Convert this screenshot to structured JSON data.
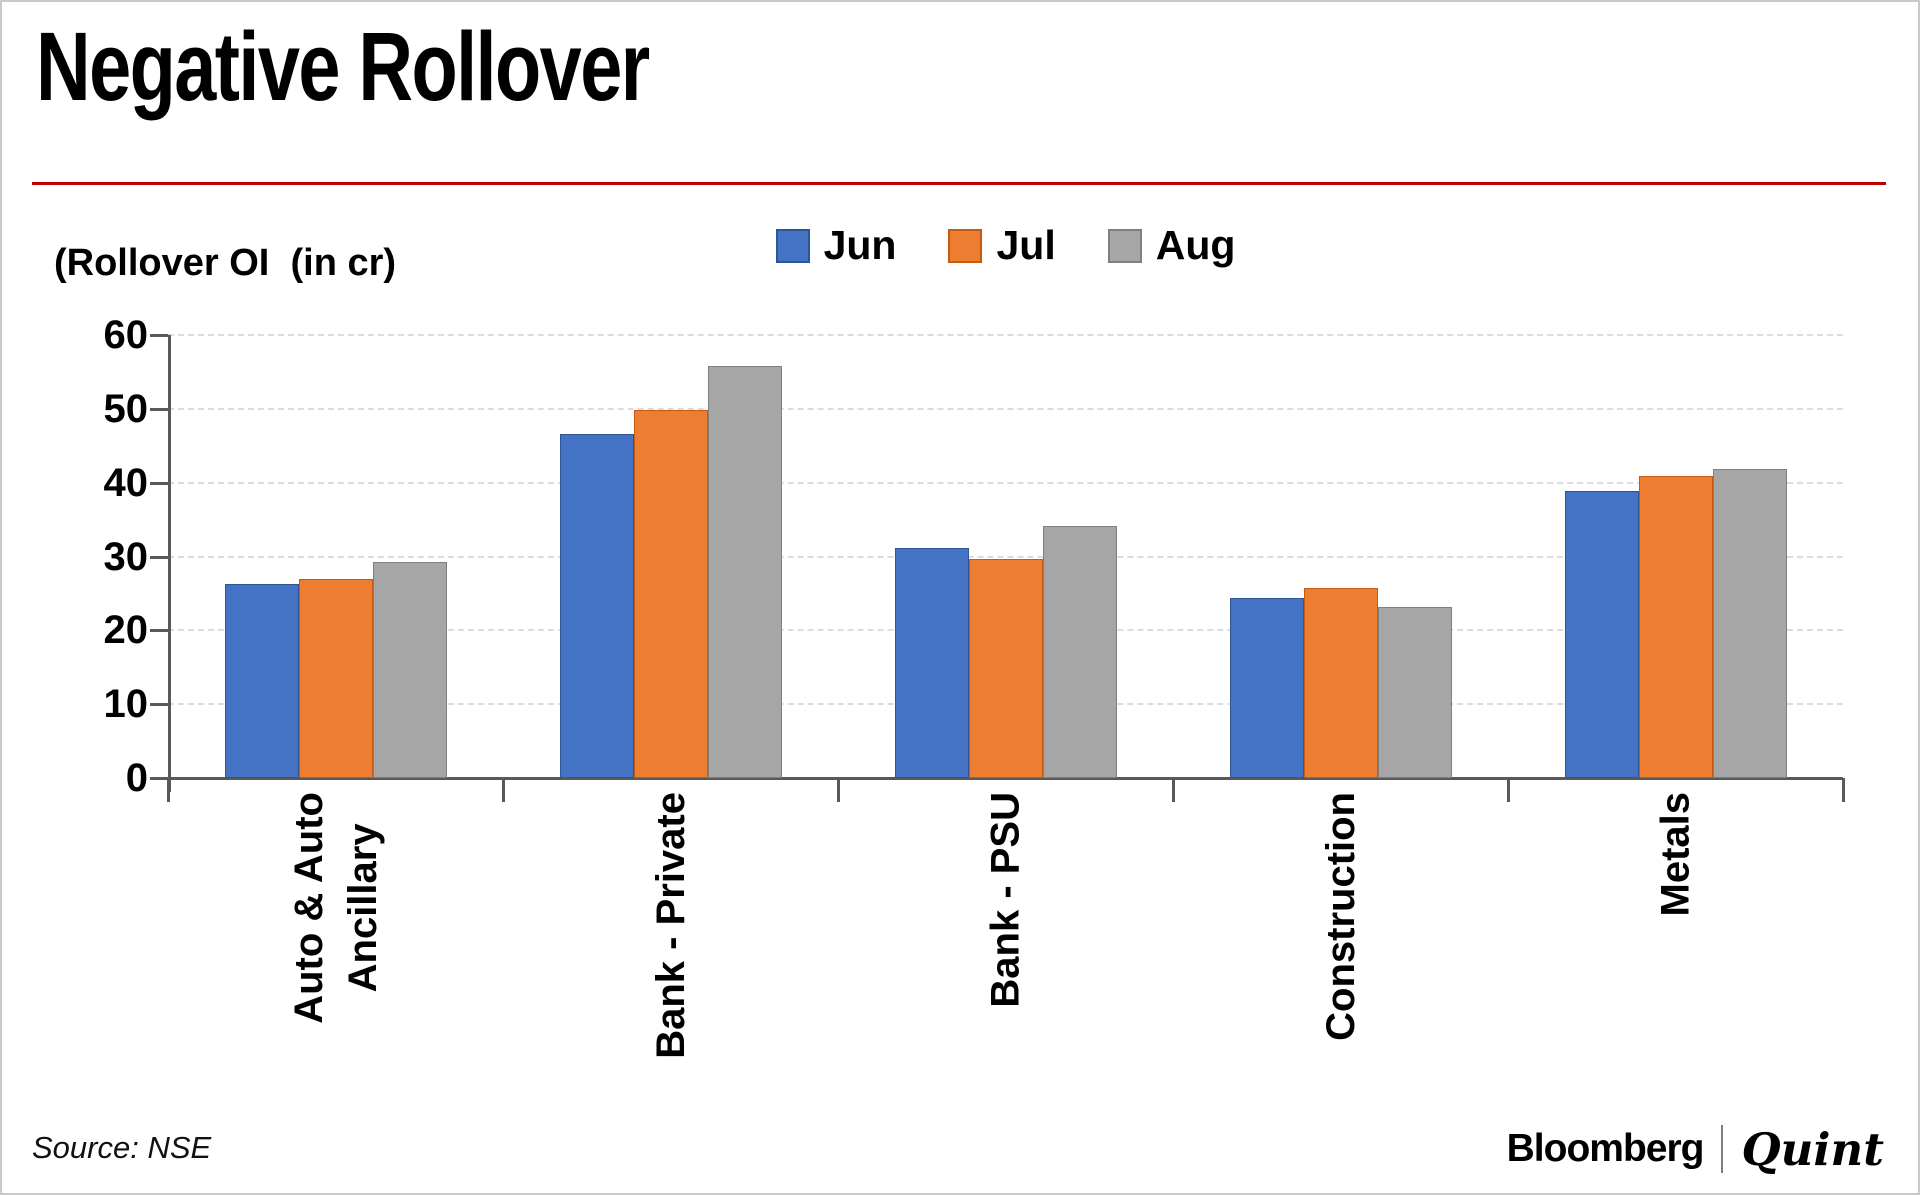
{
  "chart_data": {
    "type": "bar",
    "title": "Negative Rollover",
    "ylabel": "(Rollover OI  (in cr)",
    "xlabel": "",
    "categories": [
      [
        "Auto & Auto",
        "Ancillary"
      ],
      [
        "Bank - Private"
      ],
      [
        "Bank - PSU"
      ],
      [
        "Construction"
      ],
      [
        "Metals"
      ]
    ],
    "series": [
      {
        "name": "Jun",
        "color": "#4472C4",
        "border": "#2F5597",
        "values": [
          26.3,
          46.6,
          31.1,
          24.4,
          38.9
        ]
      },
      {
        "name": "Jul",
        "color": "#ED7D31",
        "border": "#C55A11",
        "values": [
          27.0,
          49.8,
          29.6,
          25.8,
          40.9
        ]
      },
      {
        "name": "Aug",
        "color": "#A6A6A6",
        "border": "#7F7F7F",
        "values": [
          29.2,
          55.8,
          34.1,
          23.2,
          41.9
        ]
      }
    ],
    "ylim": [
      0,
      60
    ],
    "yticks": [
      0,
      10,
      20,
      30,
      40,
      50,
      60
    ],
    "grid": "horizontal-dashed",
    "legend_position": "top-center"
  },
  "footer": {
    "source": "Source: NSE",
    "brand_primary": "Bloomberg",
    "brand_secondary": "Quint"
  },
  "colors": {
    "accent_rule": "#C00000",
    "axis": "#595959",
    "gridline": "#DCDCDC"
  }
}
